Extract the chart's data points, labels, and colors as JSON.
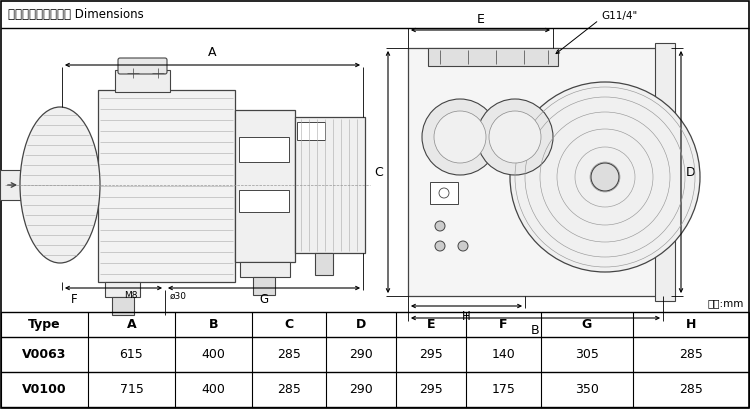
{
  "title": "外型尺寸及安装尺寸 Dimensions",
  "unit_label": "单位:mm",
  "m8_label": "M8",
  "phi30_label": "ø30",
  "g_label": "G11/4\"",
  "table_headers": [
    "Type",
    "A",
    "B",
    "C",
    "D",
    "E",
    "F",
    "G",
    "H"
  ],
  "table_rows": [
    [
      "V0063",
      "615",
      "400",
      "285",
      "290",
      "295",
      "140",
      "305",
      "285"
    ],
    [
      "V0100",
      "715",
      "400",
      "285",
      "290",
      "295",
      "175",
      "350",
      "285"
    ]
  ],
  "bg_color": "#ffffff",
  "border_color": "#000000",
  "dc": "#444444"
}
